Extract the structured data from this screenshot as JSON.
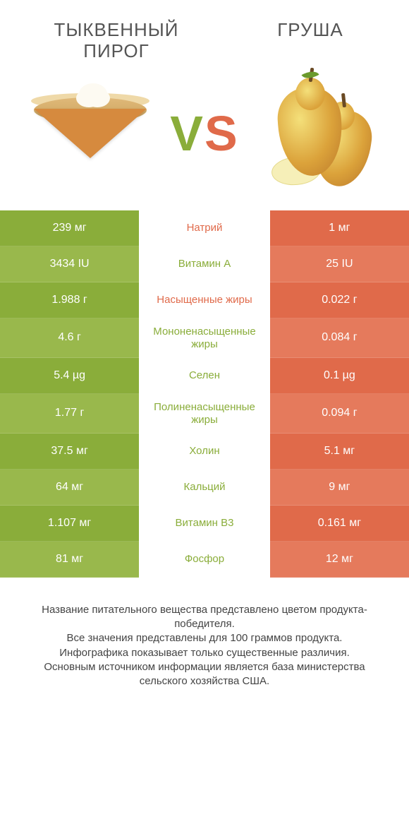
{
  "header": {
    "left_title": "ТЫКВЕННЫЙ ПИРОГ",
    "right_title": "ГРУША",
    "vs_v": "V",
    "vs_s": "S"
  },
  "colors": {
    "green": "#8aad3a",
    "green_alt": "#99b84c",
    "orange": "#e06a4a",
    "orange_alt": "#e57a5c",
    "label_green": "#8aad3a",
    "label_orange": "#e06a4a",
    "white": "#ffffff",
    "text": "#444444"
  },
  "comparison": {
    "type": "comparison-table",
    "rows": [
      {
        "left": "239 мг",
        "label": "Натрий",
        "right": "1 мг",
        "winner": "left",
        "label_color": "orange"
      },
      {
        "left": "3434 IU",
        "label": "Витамин A",
        "right": "25 IU",
        "winner": "left",
        "label_color": "green"
      },
      {
        "left": "1.988 г",
        "label": "Насыщенные жиры",
        "right": "0.022 г",
        "winner": "left",
        "label_color": "orange"
      },
      {
        "left": "4.6 г",
        "label": "Мононенасыщенные жиры",
        "right": "0.084 г",
        "winner": "left",
        "label_color": "green"
      },
      {
        "left": "5.4 µg",
        "label": "Селен",
        "right": "0.1 µg",
        "winner": "left",
        "label_color": "green"
      },
      {
        "left": "1.77 г",
        "label": "Полиненасыщенные жиры",
        "right": "0.094 г",
        "winner": "left",
        "label_color": "green"
      },
      {
        "left": "37.5 мг",
        "label": "Холин",
        "right": "5.1 мг",
        "winner": "left",
        "label_color": "green"
      },
      {
        "left": "64 мг",
        "label": "Кальций",
        "right": "9 мг",
        "winner": "left",
        "label_color": "green"
      },
      {
        "left": "1.107 мг",
        "label": "Витамин B3",
        "right": "0.161 мг",
        "winner": "left",
        "label_color": "green"
      },
      {
        "left": "81 мг",
        "label": "Фосфор",
        "right": "12 мг",
        "winner": "left",
        "label_color": "green"
      }
    ]
  },
  "footer": {
    "line1": "Название питательного вещества представлено цветом продукта-победителя.",
    "line2": "Все значения представлены для 100 граммов продукта.",
    "line3": "Инфографика показывает только существенные различия.",
    "line4": "Основным источником информации является база министерства сельского хозяйства США."
  }
}
